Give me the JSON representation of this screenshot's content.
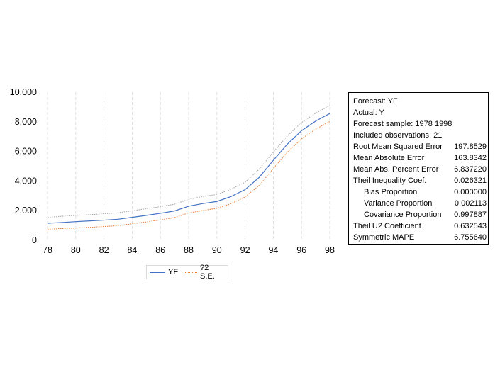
{
  "chart_data": {
    "type": "line",
    "x": [
      1978,
      1979,
      1980,
      1981,
      1982,
      1983,
      1984,
      1985,
      1986,
      1987,
      1988,
      1989,
      1990,
      1991,
      1992,
      1993,
      1994,
      1995,
      1996,
      1997,
      1998
    ],
    "x_tick_labels": [
      "78",
      "80",
      "82",
      "84",
      "86",
      "88",
      "90",
      "92",
      "94",
      "96",
      "98"
    ],
    "y_tick_labels": [
      "0",
      "2,000",
      "4,000",
      "6,000",
      "8,000",
      "10,000"
    ],
    "ylim": [
      0,
      10000
    ],
    "xlim": [
      1978,
      1998
    ],
    "grid": "vertical dashed",
    "legend_position": "bottom",
    "series": [
      {
        "name": "YF",
        "style": "solid",
        "color": "#4472c4",
        "values": [
          1150,
          1200,
          1260,
          1310,
          1360,
          1420,
          1550,
          1680,
          1820,
          1980,
          2300,
          2480,
          2620,
          2950,
          3420,
          4250,
          5400,
          6500,
          7400,
          8050,
          8560
        ]
      },
      {
        "name": "?2 S.E.",
        "style": "dotted",
        "color": "#a5a5a5",
        "values": [
          1550,
          1620,
          1680,
          1730,
          1790,
          1860,
          1990,
          2130,
          2270,
          2440,
          2760,
          2950,
          3090,
          3440,
          3920,
          4800,
          5950,
          7050,
          7950,
          8580,
          9100
        ]
      },
      {
        "name": "",
        "style": "dotted",
        "color": "#ed7d31",
        "values": [
          750,
          790,
          830,
          880,
          930,
          990,
          1110,
          1240,
          1380,
          1530,
          1850,
          2010,
          2160,
          2470,
          2930,
          3700,
          4850,
          5950,
          6850,
          7500,
          8020
        ]
      }
    ]
  },
  "stats": {
    "lines": [
      "Forecast: YF",
      "Actual: Y",
      "Forecast sample: 1978 1998",
      "Included observations: 21"
    ],
    "rows": [
      {
        "label": "Root Mean Squared Error",
        "value": "197.8529",
        "indent": false
      },
      {
        "label": "Mean Absolute Error",
        "value": "163.8342",
        "indent": false
      },
      {
        "label": "Mean Abs. Percent Error",
        "value": "6.837220",
        "indent": false
      },
      {
        "label": "Theil Inequality Coef.",
        "value": "0.026321",
        "indent": false
      },
      {
        "label": "Bias Proportion",
        "value": "0.000000",
        "indent": true
      },
      {
        "label": "Variance Proportion",
        "value": "0.002113",
        "indent": true
      },
      {
        "label": "Covariance Proportion",
        "value": "0.997887",
        "indent": true
      },
      {
        "label": "Theil U2 Coefficient",
        "value": "0.632543",
        "indent": false
      },
      {
        "label": "Symmetric MAPE",
        "value": "6.755640",
        "indent": false
      }
    ]
  },
  "legend": {
    "items": [
      {
        "label": "YF"
      },
      {
        "label": "?2 S.E."
      }
    ]
  }
}
